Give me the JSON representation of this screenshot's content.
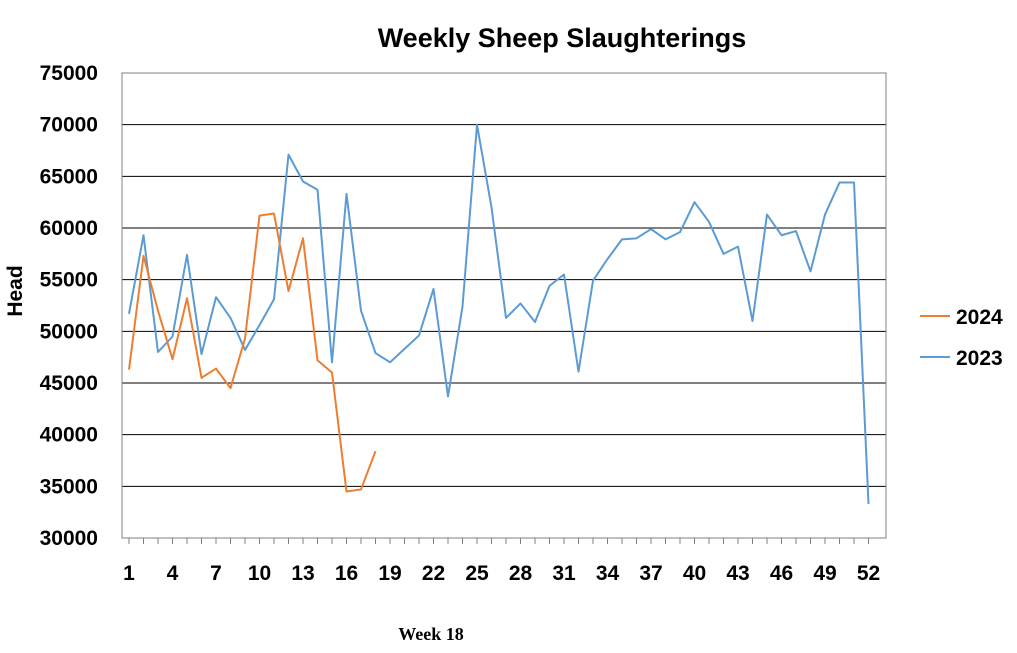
{
  "chart_data": {
    "type": "line",
    "title": "Weekly Sheep Slaughterings",
    "xlabel": "",
    "ylabel": "Head",
    "ylim": [
      30000,
      75000
    ],
    "yticks": [
      30000,
      35000,
      40000,
      45000,
      50000,
      55000,
      60000,
      65000,
      70000,
      75000
    ],
    "xlim": [
      1,
      52
    ],
    "xticks": [
      1,
      4,
      7,
      10,
      13,
      16,
      19,
      22,
      25,
      28,
      31,
      34,
      37,
      40,
      43,
      46,
      49,
      52
    ],
    "grid": "horizontal",
    "legend_position": "right",
    "series": [
      {
        "name": "2024",
        "color": "#ED7D31",
        "x": [
          1,
          2,
          3,
          4,
          5,
          6,
          7,
          8,
          9,
          10,
          11,
          12,
          13,
          14,
          15,
          16,
          17,
          18
        ],
        "values": [
          46300,
          57300,
          52000,
          47300,
          53200,
          45500,
          46400,
          44500,
          49300,
          61200,
          61400,
          53900,
          59000,
          47200,
          46000,
          34500,
          34700,
          38400
        ]
      },
      {
        "name": "2023",
        "color": "#5B9BD5",
        "x": [
          1,
          2,
          3,
          4,
          5,
          6,
          7,
          8,
          9,
          10,
          11,
          12,
          13,
          14,
          15,
          16,
          17,
          18,
          19,
          20,
          21,
          22,
          23,
          24,
          25,
          26,
          27,
          28,
          29,
          30,
          31,
          32,
          33,
          34,
          35,
          36,
          37,
          38,
          39,
          40,
          41,
          42,
          43,
          44,
          45,
          46,
          47,
          48,
          49,
          50,
          51,
          52
        ],
        "values": [
          51700,
          59300,
          48000,
          49500,
          57400,
          47800,
          53300,
          51300,
          48200,
          50600,
          53100,
          67100,
          64500,
          63700,
          47000,
          63300,
          52000,
          47900,
          47000,
          48300,
          49600,
          54100,
          43700,
          52400,
          70000,
          62000,
          51300,
          52700,
          50900,
          54400,
          55500,
          46100,
          54900,
          57000,
          58900,
          59000,
          59900,
          58900,
          59600,
          62500,
          60600,
          57500,
          58200,
          51000,
          61300,
          59300,
          59700,
          55800,
          61300,
          64400,
          64400,
          33300
        ]
      }
    ],
    "legend": [
      "2024",
      "2023"
    ],
    "footnote": "Week 18"
  }
}
